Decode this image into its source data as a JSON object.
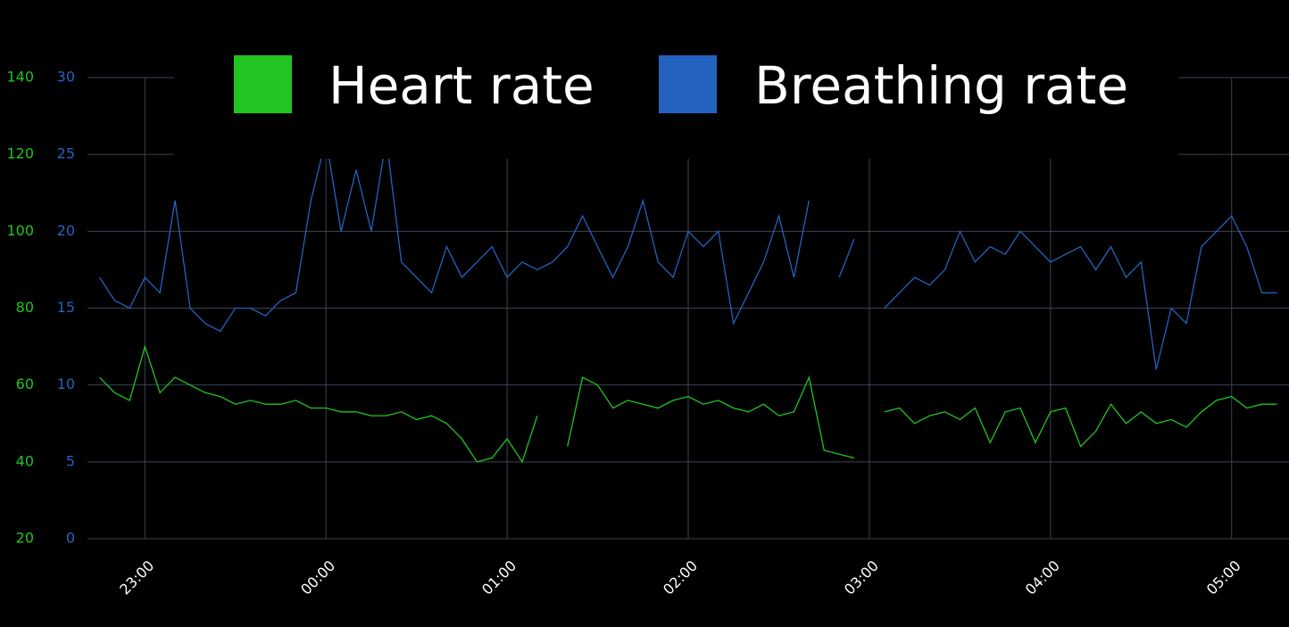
{
  "chart_data": {
    "type": "line",
    "x": [
      "22:45",
      "22:50",
      "22:55",
      "23:00",
      "23:05",
      "23:10",
      "23:15",
      "23:20",
      "23:25",
      "23:30",
      "23:35",
      "23:40",
      "23:45",
      "23:50",
      "23:55",
      "00:00",
      "00:05",
      "00:10",
      "00:15",
      "00:20",
      "00:25",
      "00:30",
      "00:35",
      "00:40",
      "00:45",
      "00:50",
      "00:55",
      "01:00",
      "01:05",
      "01:10",
      "01:15",
      "01:20",
      "01:25",
      "01:30",
      "01:35",
      "01:40",
      "01:45",
      "01:50",
      "01:55",
      "02:00",
      "02:05",
      "02:10",
      "02:15",
      "02:20",
      "02:25",
      "02:30",
      "02:35",
      "02:40",
      "02:45",
      "02:50",
      "02:55",
      "03:00",
      "03:05",
      "03:10",
      "03:15",
      "03:20",
      "03:25",
      "03:30",
      "03:35",
      "03:40",
      "03:45",
      "03:50",
      "03:55",
      "04:00",
      "04:05",
      "04:10",
      "04:15",
      "04:20",
      "04:25",
      "04:30",
      "04:35",
      "04:40",
      "04:45",
      "04:50",
      "04:55",
      "05:00",
      "05:05",
      "05:10",
      "05:15"
    ],
    "series": [
      {
        "name": "Heart rate",
        "color": "#22c422",
        "axis": "y",
        "values": [
          62,
          58,
          56,
          70,
          58,
          62,
          60,
          58,
          57,
          55,
          56,
          55,
          55,
          56,
          54,
          54,
          53,
          53,
          52,
          52,
          53,
          51,
          52,
          50,
          46,
          40,
          41,
          46,
          40,
          52,
          null,
          44,
          62,
          60,
          54,
          56,
          55,
          54,
          56,
          57,
          55,
          56,
          54,
          53,
          55,
          52,
          53,
          62,
          43,
          42,
          41,
          null,
          53,
          54,
          50,
          52,
          53,
          51,
          54,
          45,
          53,
          54,
          45,
          53,
          54,
          44,
          48,
          55,
          50,
          53,
          50,
          51,
          49,
          53,
          56,
          57,
          54,
          55,
          55
        ]
      },
      {
        "name": "Breathing rate",
        "color": "#2462c0",
        "axis": "y2",
        "values": [
          17,
          15.5,
          15,
          17,
          16,
          22,
          15,
          14,
          13.5,
          15,
          15,
          14.5,
          15.5,
          16,
          22,
          26,
          20,
          24,
          20,
          26,
          18,
          17,
          16,
          19,
          17,
          18,
          19,
          17,
          18,
          17.5,
          18,
          19,
          21,
          19,
          17,
          19,
          22,
          18,
          17,
          20,
          19,
          20,
          14,
          16,
          18,
          21,
          17,
          22,
          null,
          17,
          19.5,
          null,
          15,
          16,
          17,
          16.5,
          17.5,
          20,
          18,
          19,
          18.5,
          20,
          19,
          18,
          18.5,
          19,
          17.5,
          19,
          17,
          18,
          11,
          15,
          14,
          19,
          20,
          21,
          19,
          16,
          16
        ]
      }
    ],
    "xlim": [
      "22:41",
      "05:19"
    ],
    "xticks": [
      "23:00",
      "00:00",
      "01:00",
      "02:00",
      "03:00",
      "04:00",
      "05:00"
    ],
    "ylim": [
      20,
      140
    ],
    "yticks": [
      20,
      40,
      60,
      80,
      100,
      120,
      140
    ],
    "y2lim": [
      0,
      30
    ],
    "y2ticks": [
      0,
      5,
      10,
      15,
      20,
      25,
      30
    ],
    "grid": true,
    "legend": "top"
  }
}
